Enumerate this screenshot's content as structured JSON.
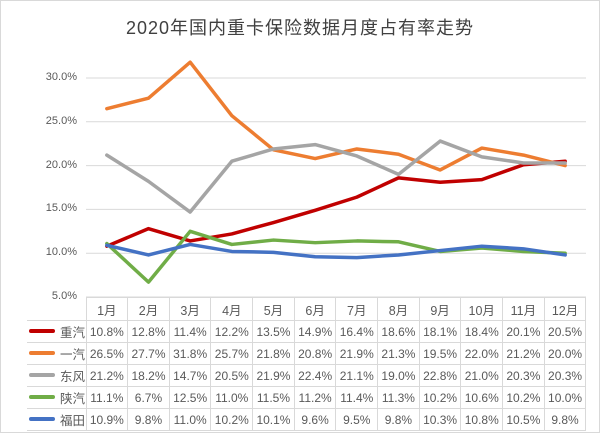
{
  "chart_data": {
    "type": "line",
    "title": "2020年国内重卡保险数据月度占有率走势",
    "categories": [
      "1月",
      "2月",
      "3月",
      "4月",
      "5月",
      "6月",
      "7月",
      "8月",
      "9月",
      "10月",
      "11月",
      "12月"
    ],
    "series": [
      {
        "name": "重汽",
        "color": "#c00000",
        "values": [
          10.8,
          12.8,
          11.4,
          12.2,
          13.5,
          14.9,
          16.4,
          18.6,
          18.1,
          18.4,
          20.1,
          20.5
        ]
      },
      {
        "name": "一汽",
        "color": "#ed7d31",
        "values": [
          26.5,
          27.7,
          31.8,
          25.7,
          21.8,
          20.8,
          21.9,
          21.3,
          19.5,
          22.0,
          21.2,
          20.0
        ]
      },
      {
        "name": "东风",
        "color": "#a5a5a5",
        "values": [
          21.2,
          18.2,
          14.7,
          20.5,
          21.9,
          22.4,
          21.1,
          19.0,
          22.8,
          21.0,
          20.3,
          20.3
        ]
      },
      {
        "name": "陕汽",
        "color": "#70ad47",
        "values": [
          11.1,
          6.7,
          12.5,
          11.0,
          11.5,
          11.2,
          11.4,
          11.3,
          10.2,
          10.6,
          10.2,
          10.0
        ]
      },
      {
        "name": "福田",
        "color": "#4472c4",
        "values": [
          10.9,
          9.8,
          11.0,
          10.2,
          10.1,
          9.6,
          9.5,
          9.8,
          10.3,
          10.8,
          10.5,
          9.8
        ]
      }
    ],
    "y_ticks": [
      "30.0%",
      "25.0%",
      "20.0%",
      "15.0%",
      "10.0%",
      "5.0%"
    ],
    "ylim": [
      5,
      32.5
    ],
    "value_suffix": "%",
    "grid": true,
    "gridline_color": "#d9d9d9",
    "legend_position": "table-left"
  }
}
